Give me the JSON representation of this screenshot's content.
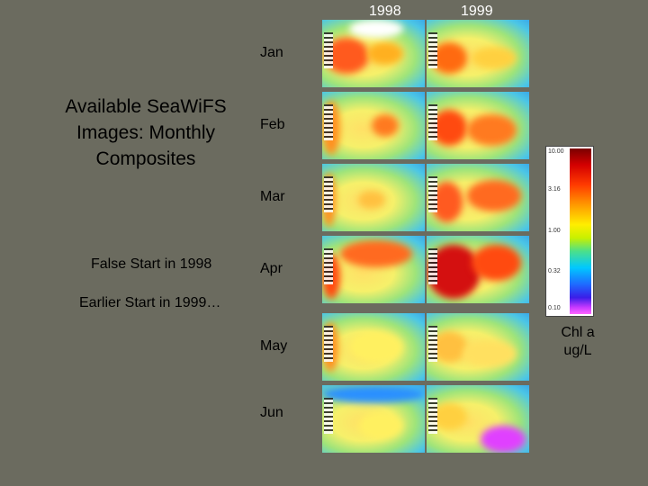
{
  "columns": [
    "1998",
    "1999"
  ],
  "months": [
    "Jan",
    "Feb",
    "Mar",
    "Apr",
    "May",
    "Jun"
  ],
  "title": "Available SeaWiFS Images: Monthly Composites",
  "notes": {
    "false_start": "False Start in 1998",
    "earlier_start": "Earlier Start in 1999…"
  },
  "colorbar": {
    "ticks": [
      "10.00",
      "3.16",
      "1.00",
      "0.32",
      "0.10"
    ],
    "label_line1": "Chl a",
    "label_line2": "ug/L"
  },
  "colors": {
    "background": "#6b6b5f",
    "header_text": "#ffffff"
  }
}
